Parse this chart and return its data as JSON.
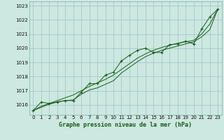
{
  "title": "Graphe pression niveau de la mer (hPa)",
  "bg_color": "#cce8e0",
  "grid_color": "#aacccc",
  "line_color": "#1a5c1a",
  "marker_color": "#1a5c1a",
  "xlim": [
    -0.5,
    23.5
  ],
  "ylim": [
    1015.3,
    1023.3
  ],
  "yticks": [
    1016,
    1017,
    1018,
    1019,
    1020,
    1021,
    1022,
    1023
  ],
  "xticks": [
    0,
    1,
    2,
    3,
    4,
    5,
    6,
    7,
    8,
    9,
    10,
    11,
    12,
    13,
    14,
    15,
    16,
    17,
    18,
    19,
    20,
    21,
    22,
    23
  ],
  "series1": [
    [
      0,
      1015.6
    ],
    [
      1,
      1016.2
    ],
    [
      2,
      1016.1
    ],
    [
      3,
      1016.2
    ],
    [
      4,
      1016.3
    ],
    [
      5,
      1016.3
    ],
    [
      6,
      1016.9
    ],
    [
      7,
      1017.5
    ],
    [
      8,
      1017.5
    ],
    [
      9,
      1018.1
    ],
    [
      10,
      1018.3
    ],
    [
      11,
      1019.1
    ],
    [
      12,
      1019.5
    ],
    [
      13,
      1019.85
    ],
    [
      14,
      1020.0
    ],
    [
      15,
      1019.7
    ],
    [
      16,
      1019.7
    ],
    [
      17,
      1020.25
    ],
    [
      18,
      1020.3
    ],
    [
      19,
      1020.5
    ],
    [
      20,
      1020.3
    ],
    [
      21,
      1021.35
    ],
    [
      22,
      1022.2
    ],
    [
      23,
      1022.75
    ]
  ],
  "series2": [
    [
      0,
      1015.6
    ],
    [
      1,
      1015.9
    ],
    [
      2,
      1016.1
    ],
    [
      3,
      1016.3
    ],
    [
      4,
      1016.5
    ],
    [
      5,
      1016.7
    ],
    [
      6,
      1017.0
    ],
    [
      7,
      1017.3
    ],
    [
      8,
      1017.55
    ],
    [
      9,
      1017.8
    ],
    [
      10,
      1018.1
    ],
    [
      11,
      1018.5
    ],
    [
      12,
      1018.9
    ],
    [
      13,
      1019.3
    ],
    [
      14,
      1019.6
    ],
    [
      15,
      1019.85
    ],
    [
      16,
      1020.05
    ],
    [
      17,
      1020.2
    ],
    [
      18,
      1020.35
    ],
    [
      19,
      1020.45
    ],
    [
      20,
      1020.55
    ],
    [
      21,
      1021.0
    ],
    [
      22,
      1021.7
    ],
    [
      23,
      1022.75
    ]
  ],
  "series3": [
    [
      0,
      1015.6
    ],
    [
      2,
      1016.05
    ],
    [
      3,
      1016.2
    ],
    [
      4,
      1016.3
    ],
    [
      5,
      1016.35
    ],
    [
      6,
      1016.75
    ],
    [
      7,
      1017.05
    ],
    [
      8,
      1017.2
    ],
    [
      9,
      1017.45
    ],
    [
      10,
      1017.7
    ],
    [
      11,
      1018.25
    ],
    [
      12,
      1018.65
    ],
    [
      13,
      1019.05
    ],
    [
      14,
      1019.4
    ],
    [
      15,
      1019.65
    ],
    [
      16,
      1019.85
    ],
    [
      17,
      1020.0
    ],
    [
      18,
      1020.15
    ],
    [
      19,
      1020.3
    ],
    [
      20,
      1020.45
    ],
    [
      21,
      1020.8
    ],
    [
      22,
      1021.3
    ],
    [
      23,
      1022.75
    ]
  ]
}
